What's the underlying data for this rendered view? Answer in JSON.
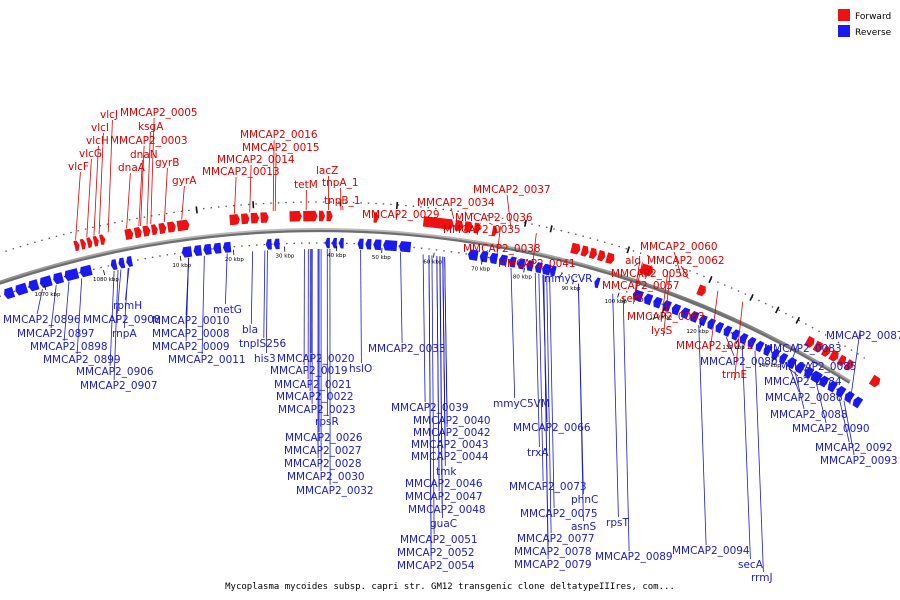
{
  "legend": [
    {
      "label": "Forward",
      "color": "#ee1111"
    },
    {
      "label": "Reverse",
      "color": "#1a1aee"
    }
  ],
  "caption": "Mycoplasma mycoides subsp. capri str. GM12 transgenic clone deltatypeIIIres, com...",
  "ticks": [
    "1070 kbp",
    "1080 kbp",
    "10 kbp",
    "20 kbp",
    "30 kbp",
    "40 kbp",
    "50 kbp",
    "60 kbp",
    "70 kbp",
    "80 kbp",
    "90 kbp",
    "100 kbp",
    "110 kbp",
    "120 kbp",
    "130 kbp",
    "140 kbp"
  ],
  "forward_labels": [
    "vlcJ",
    "vlcI",
    "vlcH",
    "vlcG",
    "vlcF",
    "MMCAP2_0005",
    "ksgA",
    "MMCAP2_0003",
    "dnaN",
    "dnaA",
    "gyrB",
    "gyrA",
    "MMCAP2_0016",
    "MMCAP2_0015",
    "MMCAP2_0014",
    "MMCAP2_0013",
    "lacZ",
    "tetM",
    "tnpA_1",
    "tnpB_1",
    "MMCAP2_0029",
    "MMCAP2_0037",
    "MMCAP2_0034",
    "MMCAP2_0036",
    "MMCAP2_0035",
    "MMCAP2_0038",
    "MMCAP2_0041",
    "MMCAP2_0060",
    "ald",
    "MMCAP2_0062",
    "MMCAP2_0058",
    "MMCAP2_0057",
    "serS",
    "MMCAP2_0063",
    "lysS",
    "MMCAP2_0072",
    "trmE"
  ],
  "reverse_labels": [
    "MMCAP2_0896",
    "MMCAP2_0897",
    "MMCAP2_0898",
    "MMCAP2_0899",
    "rpmH",
    "MMCAP2_0908",
    "rnpA",
    "MMCAP2_0906",
    "MMCAP2_0907",
    "metG",
    "MMCAP2_0010",
    "MMCAP2_0008",
    "MMCAP2_0009",
    "MMCAP2_0011",
    "bla",
    "tnpIS256",
    "his3",
    "MMCAP2_0020",
    "MMCAP2_0019",
    "hslO",
    "MMCAP2_0021",
    "MMCAP2_0022",
    "MMCAP2_0023",
    "rpsR",
    "MMCAP2_0026",
    "MMCAP2_0027",
    "MMCAP2_0028",
    "MMCAP2_0030",
    "MMCAP2_0032",
    "MMCAP2_0033",
    "mmyCVR",
    "MMCAP2_0039",
    "MMCAP2_0040",
    "MMCAP2_0042",
    "MMCAP2_0043",
    "MMCAP2_0044",
    "tmk",
    "MMCAP2_0046",
    "MMCAP2_0047",
    "MMCAP2_0048",
    "guaC",
    "MMCAP2_0051",
    "MMCAP2_0052",
    "MMCAP2_0054",
    "mmyC5VM",
    "MMCAP2_0066",
    "trxA",
    "MMCAP2_0073",
    "phnC",
    "MMCAP2_0075",
    "asnS",
    "rpsT",
    "MMCAP2_0077",
    "MMCAP2_0078",
    "MMCAP2_0079",
    "MMCAP2_0089",
    "MMCAP2_0094",
    "secA",
    "rrmJ",
    "MMCAP2_0080",
    "MMCAP2_0083",
    "MMCAP2_0087",
    "MMCAP2_0085",
    "MMCAP2_0084",
    "MMCAP2_0086",
    "MMCAP2_0088",
    "MMCAP2_0090",
    "MMCAP2_0092",
    "MMCAP2_0093"
  ]
}
